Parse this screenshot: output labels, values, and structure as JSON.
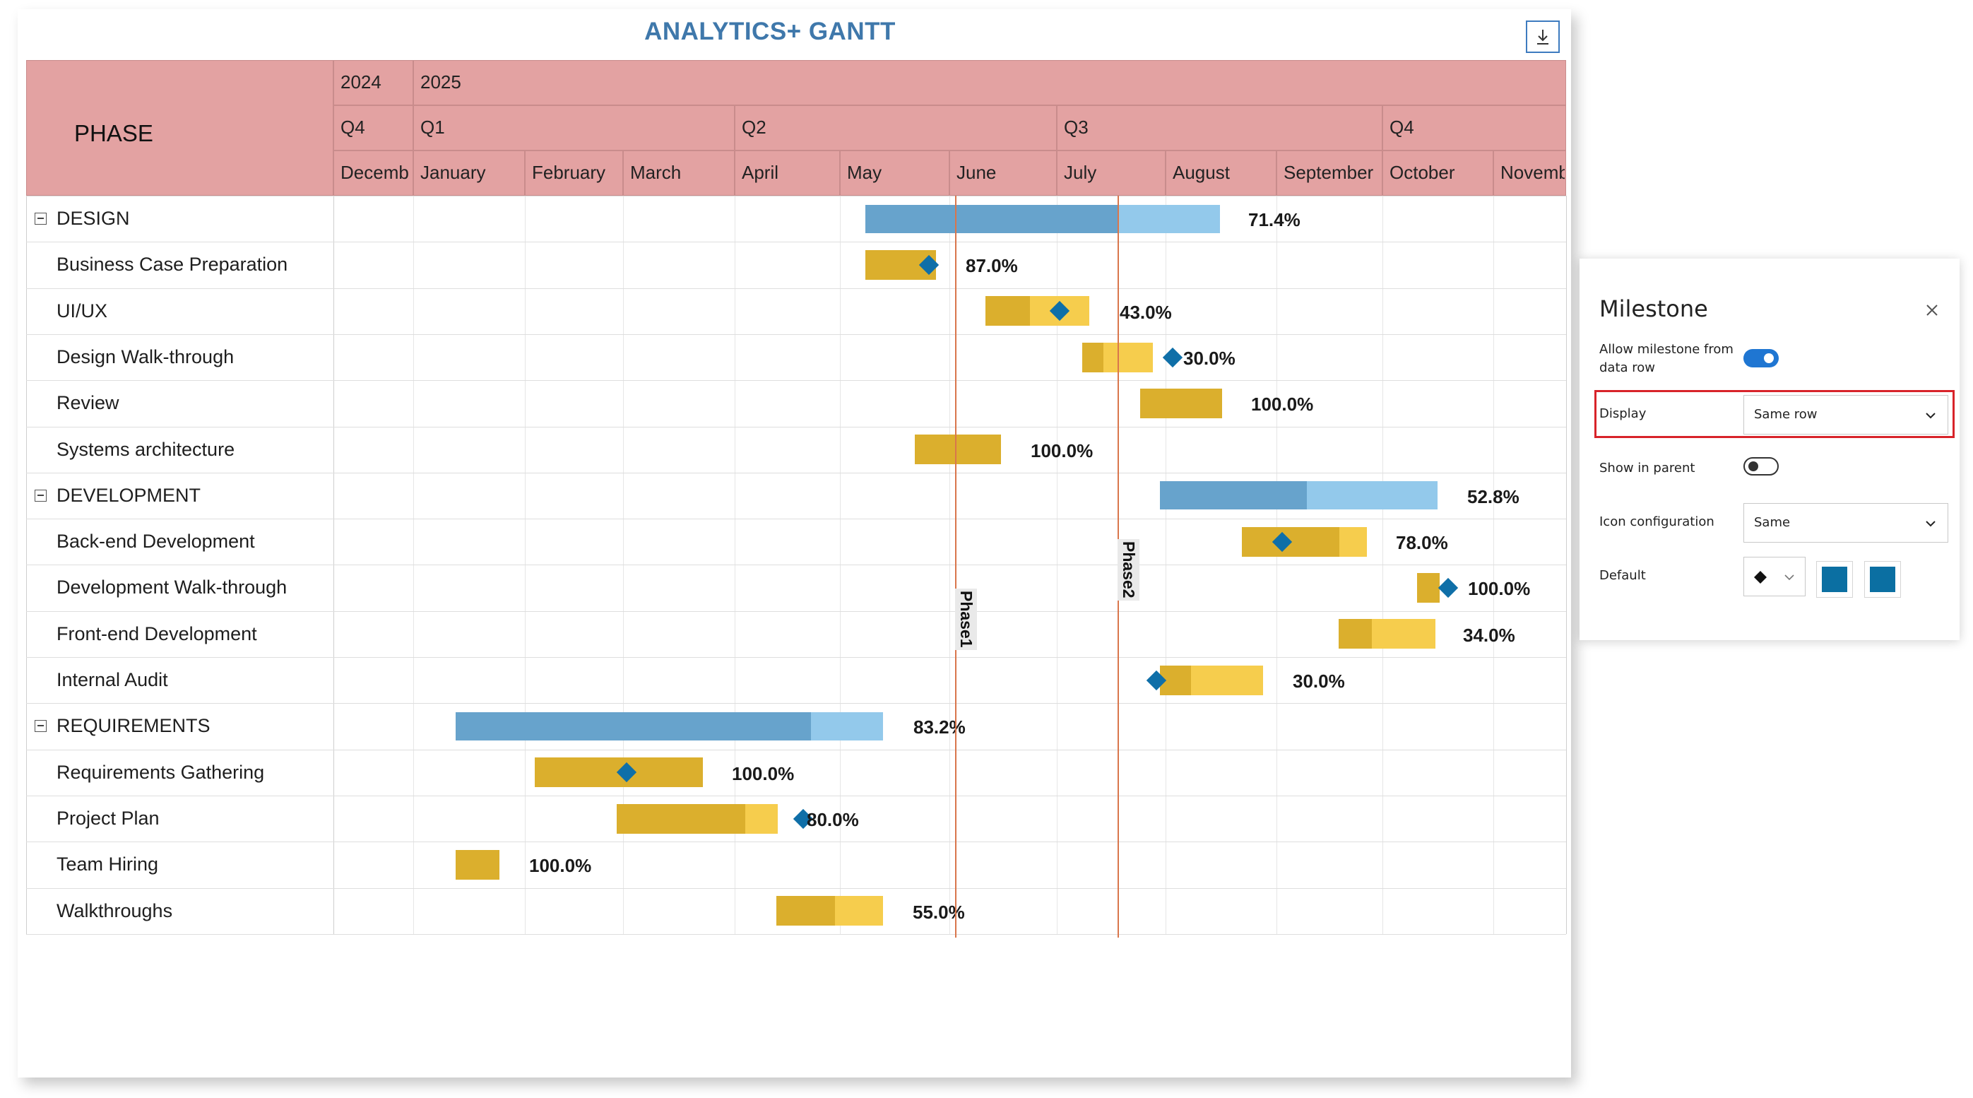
{
  "title": "ANALYTICS+ GANTT",
  "phase_header": "PHASE",
  "colors": {
    "header_bg": "#e3a2a2",
    "parent_bar_done": "#67a3cc",
    "parent_bar_remaining": "#93c9eb",
    "task_bar_done": "#dbaf2d",
    "task_bar_remaining": "#f6cd4d",
    "milestone": "#0f6fa8",
    "phase_line": "#d9764c",
    "title": "#3f78ab",
    "highlight": "#d8232a"
  },
  "timeline": {
    "years": [
      "2024",
      "2025"
    ],
    "quarters": [
      "Q4",
      "Q1",
      "Q2",
      "Q3",
      "Q4"
    ],
    "months": [
      "Decemb",
      "January",
      "February",
      "March",
      "April",
      "May",
      "June",
      "July",
      "August",
      "September",
      "October",
      "Novemb"
    ]
  },
  "rows": [
    {
      "label": "DESIGN",
      "type": "parent",
      "percent": "71.4%"
    },
    {
      "label": "Business Case Preparation",
      "type": "task",
      "percent": "87.0%"
    },
    {
      "label": "UI/UX",
      "type": "task",
      "percent": "43.0%"
    },
    {
      "label": "Design Walk-through",
      "type": "task",
      "percent": "30.0%"
    },
    {
      "label": "Review",
      "type": "task",
      "percent": "100.0%"
    },
    {
      "label": "Systems architecture",
      "type": "task",
      "percent": "100.0%"
    },
    {
      "label": "DEVELOPMENT",
      "type": "parent",
      "percent": "52.8%"
    },
    {
      "label": "Back-end Development",
      "type": "task",
      "percent": "78.0%"
    },
    {
      "label": "Development Walk-through",
      "type": "task",
      "percent": "100.0%"
    },
    {
      "label": "Front-end Development",
      "type": "task",
      "percent": "34.0%"
    },
    {
      "label": "Internal Audit",
      "type": "task",
      "percent": "30.0%"
    },
    {
      "label": "REQUIREMENTS",
      "type": "parent",
      "percent": "83.2%"
    },
    {
      "label": "Requirements Gathering",
      "type": "task",
      "percent": "100.0%"
    },
    {
      "label": "Project Plan",
      "type": "task",
      "percent": "80.0%"
    },
    {
      "label": "Team Hiring",
      "type": "task",
      "percent": "100.0%"
    },
    {
      "label": "Walkthroughs",
      "type": "task",
      "percent": "55.0%"
    }
  ],
  "phase_markers": [
    "Phase1",
    "Phase2"
  ],
  "milestone_panel": {
    "title": "Milestone",
    "allow_label": "Allow milestone from data row",
    "allow_on": true,
    "display_label": "Display",
    "display_value": "Same row",
    "show_in_parent_label": "Show in parent",
    "show_in_parent_on": false,
    "icon_config_label": "Icon configuration",
    "icon_config_value": "Same",
    "default_label": "Default",
    "default_shape": "diamond-icon"
  }
}
